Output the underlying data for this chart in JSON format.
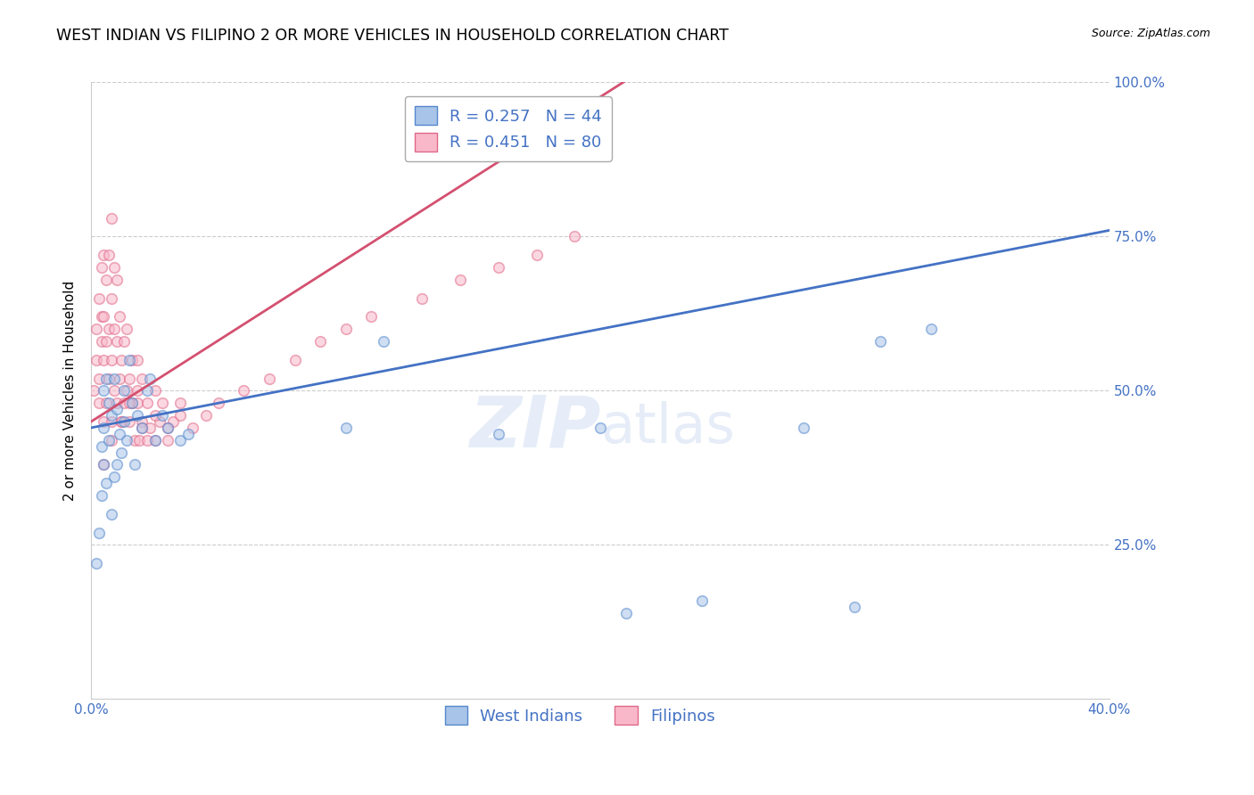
{
  "title": "WEST INDIAN VS FILIPINO 2 OR MORE VEHICLES IN HOUSEHOLD CORRELATION CHART",
  "source": "Source: ZipAtlas.com",
  "ylabel": "2 or more Vehicles in Household",
  "xlim": [
    0.0,
    0.4
  ],
  "ylim": [
    0.0,
    1.0
  ],
  "watermark_line1": "ZIP",
  "watermark_line2": "atlas",
  "x_ticks": [
    0.0,
    0.1,
    0.2,
    0.3,
    0.4
  ],
  "x_tick_labels": [
    "0.0%",
    "",
    "",
    "",
    "40.0%"
  ],
  "y_ticks": [
    0.0,
    0.25,
    0.5,
    0.75,
    1.0
  ],
  "y_tick_labels": [
    "",
    "25.0%",
    "50.0%",
    "75.0%",
    "100.0%"
  ],
  "west_indian_color": "#a8c4e8",
  "filipino_color": "#f9b8ca",
  "west_indian_edge": "#5588cc",
  "filipino_edge": "#e06888",
  "west_indian_line_color": "#4472c4",
  "filipino_line_color": "#d45070",
  "marker_size": 70,
  "marker_alpha": 0.55,
  "background_color": "#ffffff",
  "grid_color": "#cccccc",
  "title_fontsize": 12.5,
  "axis_label_fontsize": 11,
  "tick_label_color": "#4472c4",
  "legend_fontsize": 13,
  "R_west_indian": 0.257,
  "R_filipino": 0.451,
  "N_west_indian": 44,
  "N_filipino": 80,
  "west_indian_x": [
    0.002,
    0.003,
    0.004,
    0.004,
    0.005,
    0.005,
    0.005,
    0.006,
    0.006,
    0.007,
    0.007,
    0.008,
    0.008,
    0.009,
    0.009,
    0.01,
    0.01,
    0.011,
    0.012,
    0.013,
    0.013,
    0.014,
    0.015,
    0.016,
    0.017,
    0.018,
    0.02,
    0.022,
    0.023,
    0.025,
    0.028,
    0.03,
    0.035,
    0.038,
    0.1,
    0.115,
    0.16,
    0.2,
    0.21,
    0.24,
    0.28,
    0.3,
    0.33,
    0.31
  ],
  "west_indian_y": [
    0.22,
    0.27,
    0.33,
    0.41,
    0.38,
    0.44,
    0.5,
    0.35,
    0.52,
    0.42,
    0.48,
    0.3,
    0.46,
    0.36,
    0.52,
    0.38,
    0.47,
    0.43,
    0.4,
    0.45,
    0.5,
    0.42,
    0.55,
    0.48,
    0.38,
    0.46,
    0.44,
    0.5,
    0.52,
    0.42,
    0.46,
    0.44,
    0.42,
    0.43,
    0.44,
    0.58,
    0.43,
    0.44,
    0.14,
    0.16,
    0.44,
    0.15,
    0.6,
    0.58
  ],
  "filipino_x": [
    0.001,
    0.002,
    0.002,
    0.003,
    0.003,
    0.003,
    0.004,
    0.004,
    0.004,
    0.005,
    0.005,
    0.005,
    0.005,
    0.006,
    0.006,
    0.006,
    0.007,
    0.007,
    0.007,
    0.008,
    0.008,
    0.008,
    0.008,
    0.009,
    0.009,
    0.009,
    0.01,
    0.01,
    0.01,
    0.011,
    0.011,
    0.012,
    0.012,
    0.013,
    0.013,
    0.014,
    0.014,
    0.015,
    0.015,
    0.016,
    0.016,
    0.017,
    0.018,
    0.018,
    0.019,
    0.02,
    0.02,
    0.022,
    0.023,
    0.025,
    0.025,
    0.027,
    0.028,
    0.03,
    0.032,
    0.035,
    0.04,
    0.045,
    0.05,
    0.06,
    0.07,
    0.08,
    0.09,
    0.1,
    0.11,
    0.13,
    0.145,
    0.16,
    0.175,
    0.19,
    0.005,
    0.008,
    0.012,
    0.015,
    0.018,
    0.02,
    0.022,
    0.025,
    0.03,
    0.035
  ],
  "filipino_y": [
    0.5,
    0.55,
    0.6,
    0.48,
    0.52,
    0.65,
    0.58,
    0.62,
    0.7,
    0.45,
    0.55,
    0.62,
    0.72,
    0.48,
    0.58,
    0.68,
    0.52,
    0.6,
    0.72,
    0.45,
    0.55,
    0.65,
    0.78,
    0.5,
    0.6,
    0.7,
    0.48,
    0.58,
    0.68,
    0.52,
    0.62,
    0.45,
    0.55,
    0.48,
    0.58,
    0.5,
    0.6,
    0.45,
    0.52,
    0.48,
    0.55,
    0.42,
    0.48,
    0.55,
    0.42,
    0.45,
    0.52,
    0.48,
    0.44,
    0.42,
    0.5,
    0.45,
    0.48,
    0.42,
    0.45,
    0.48,
    0.44,
    0.46,
    0.48,
    0.5,
    0.52,
    0.55,
    0.58,
    0.6,
    0.62,
    0.65,
    0.68,
    0.7,
    0.72,
    0.75,
    0.38,
    0.42,
    0.45,
    0.48,
    0.5,
    0.44,
    0.42,
    0.46,
    0.44,
    0.46
  ]
}
